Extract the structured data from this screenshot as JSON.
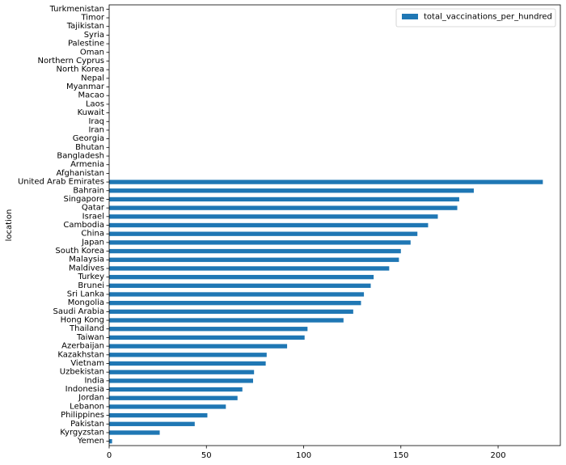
{
  "chart_data": {
    "type": "bar",
    "orientation": "horizontal",
    "title": "",
    "xlabel": "",
    "ylabel": "location",
    "xlim": [
      0,
      232
    ],
    "xticks": [
      0,
      50,
      100,
      150,
      200
    ],
    "grid": false,
    "legend_placement": "top-right",
    "series": [
      {
        "name": "total_vaccinations_per_hundred",
        "color": "#1f77b4",
        "values": [
          0,
          0,
          0,
          0,
          0,
          0,
          0,
          0,
          0,
          0,
          0,
          0,
          0,
          0,
          0,
          0,
          0,
          0,
          0,
          0,
          223,
          187.5,
          180,
          179,
          169,
          164,
          158.5,
          155,
          150,
          149,
          144,
          136,
          134.5,
          131,
          129.5,
          125.5,
          120.5,
          102,
          100.5,
          91.5,
          81,
          80.5,
          74.5,
          74,
          68.5,
          66,
          60,
          50.5,
          44,
          26,
          1.5
        ]
      }
    ],
    "categories": [
      "Turkmenistan",
      "Timor",
      "Tajikistan",
      "Syria",
      "Palestine",
      "Oman",
      "Northern Cyprus",
      "North Korea",
      "Nepal",
      "Myanmar",
      "Macao",
      "Laos",
      "Kuwait",
      "Iraq",
      "Iran",
      "Georgia",
      "Bhutan",
      "Bangladesh",
      "Armenia",
      "Afghanistan",
      "United Arab Emirates",
      "Bahrain",
      "Singapore",
      "Qatar",
      "Israel",
      "Cambodia",
      "China",
      "Japan",
      "South Korea",
      "Malaysia",
      "Maldives",
      "Turkey",
      "Brunei",
      "Sri Lanka",
      "Mongolia",
      "Saudi Arabia",
      "Hong Kong",
      "Thailand",
      "Taiwan",
      "Azerbaijan",
      "Kazakhstan",
      "Vietnam",
      "Uzbekistan",
      "India",
      "Indonesia",
      "Jordan",
      "Lebanon",
      "Philippines",
      "Pakistan",
      "Kyrgyzstan",
      "Yemen"
    ]
  }
}
